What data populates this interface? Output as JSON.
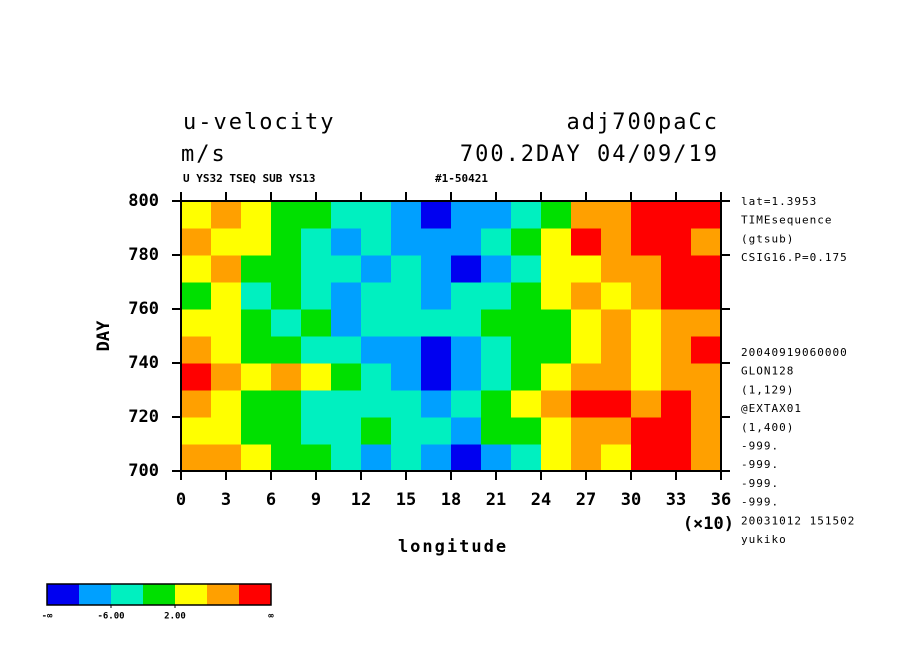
{
  "chart_data": {
    "type": "heatmap",
    "title": "u-velocity",
    "title_right": "adj700paCc",
    "subtitle": "m/s",
    "subtitle_right": "700.2DAY 04/09/19",
    "small_left": "U YS32 TSEQ SUB YS13",
    "small_mid": "#1-50421",
    "xlabel": "longitude",
    "ylabel": "DAY",
    "x_unit_label": "(×10)",
    "xlim": [
      0,
      36
    ],
    "xticks": [
      0,
      3,
      6,
      9,
      12,
      15,
      18,
      21,
      24,
      27,
      30,
      33,
      36
    ],
    "ylim": [
      700,
      800
    ],
    "yticks": [
      700,
      720,
      740,
      760,
      780,
      800
    ],
    "x_edges": [
      0,
      2,
      4,
      6,
      8,
      10,
      12,
      14,
      16,
      18,
      20,
      22,
      24,
      26,
      28,
      30,
      32,
      34,
      36
    ],
    "y_edges": [
      700,
      710,
      720,
      730,
      740,
      750,
      760,
      770,
      780,
      790,
      800
    ],
    "z": [
      [
        6,
        8,
        2,
        0,
        -2,
        -4,
        -8,
        -6,
        -10,
        -12,
        -8,
        -4,
        2,
        6,
        4,
        10,
        12,
        8
      ],
      [
        4,
        2,
        -2,
        0,
        -6,
        -4,
        -2,
        -6,
        -4,
        -8,
        -2,
        0,
        4,
        8,
        6,
        12,
        10,
        8
      ],
      [
        6,
        2,
        0,
        -2,
        -4,
        -6,
        -4,
        -6,
        -8,
        -4,
        -2,
        2,
        6,
        10,
        12,
        8,
        10,
        6
      ],
      [
        10,
        6,
        4,
        8,
        2,
        -2,
        -6,
        -8,
        -12,
        -10,
        -4,
        -2,
        2,
        6,
        8,
        4,
        6,
        8
      ],
      [
        6,
        2,
        -2,
        0,
        -4,
        -6,
        -8,
        -10,
        -12,
        -8,
        -6,
        -2,
        0,
        4,
        6,
        4,
        8,
        10
      ],
      [
        2,
        4,
        0,
        -4,
        -2,
        -8,
        -4,
        -6,
        -4,
        -6,
        -2,
        0,
        -2,
        4,
        6,
        2,
        8,
        6
      ],
      [
        0,
        2,
        -4,
        -2,
        -6,
        -10,
        -6,
        -4,
        -8,
        -6,
        -4,
        -2,
        2,
        6,
        4,
        8,
        10,
        12
      ],
      [
        4,
        6,
        0,
        -2,
        -6,
        -4,
        -8,
        -6,
        -8,
        -12,
        -10,
        -4,
        2,
        4,
        8,
        6,
        10,
        12
      ],
      [
        8,
        4,
        2,
        -2,
        -4,
        -8,
        -6,
        -8,
        -10,
        -8,
        -6,
        -2,
        4,
        10,
        6,
        12,
        10,
        8
      ],
      [
        2,
        6,
        4,
        0,
        -2,
        -6,
        -4,
        -10,
        -12,
        -10,
        -8,
        -4,
        0,
        6,
        8,
        12,
        12,
        10
      ]
    ],
    "levels": [
      -10,
      -6,
      -2,
      2,
      6,
      10
    ],
    "colors": [
      "#0000f0",
      "#00a0ff",
      "#00f0c0",
      "#00e000",
      "#ffff00",
      "#ffa000",
      "#ff0000"
    ],
    "colorbar": {
      "low_label": "-∞",
      "high_label": "∞",
      "ticks": [
        {
          "value": -6,
          "label": "-6.00"
        },
        {
          "value": 2,
          "label": "2.00"
        }
      ]
    },
    "info_top": [
      "lat=1.3953",
      "TIMEsequence",
      "(gtsub)",
      "CSIG16.P=0.175"
    ],
    "info_bottom": [
      "20040919060000",
      "GLON128",
      "(1,129)",
      "@EXTAX01",
      "(1,400)",
      "-999.",
      "-999.",
      "-999.",
      "-999.",
      "20031012 151502",
      "yukiko"
    ]
  }
}
